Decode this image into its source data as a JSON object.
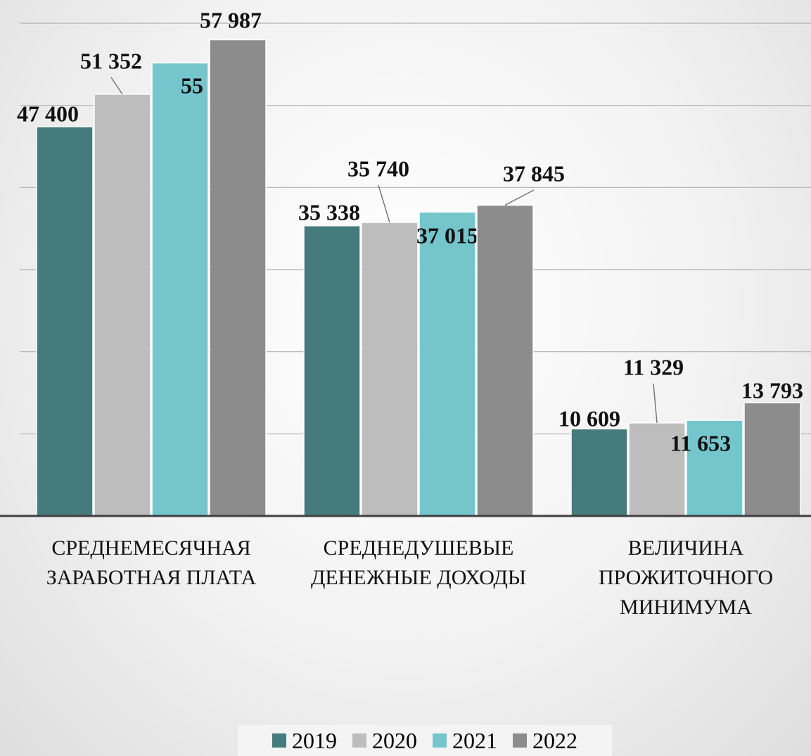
{
  "chart_data": {
    "type": "bar",
    "categories": [
      "СРЕДНЕМЕСЯЧНАЯ ЗАРАБОТНАЯ ПЛАТА",
      "СРЕДНЕДУШЕВЫЕ ДЕНЕЖНЫЕ ДОХОДЫ",
      "ВЕЛИЧИНА ПРОЖИТОЧНОГО МИНИМУМА"
    ],
    "series": [
      {
        "name": "2019",
        "color": "#467b7d",
        "values": [
          47400,
          35338,
          10609
        ],
        "value_labels": [
          "47 400",
          "35 338",
          "10 609"
        ]
      },
      {
        "name": "2020",
        "color": "#bdbdbd",
        "values": [
          51352,
          35740,
          11329
        ],
        "value_labels": [
          "51 352",
          "35 740",
          "11 329"
        ]
      },
      {
        "name": "2021",
        "color": "#74c6cc",
        "values": [
          55170,
          37015,
          11653
        ],
        "value_labels": [
          "55 170",
          "37 015",
          "11 653"
        ]
      },
      {
        "name": "2022",
        "color": "#8c8c8c",
        "values": [
          57987,
          37845,
          13793
        ],
        "value_labels": [
          "57 987",
          "37 845",
          "13 793"
        ]
      }
    ],
    "ylim": [
      0,
      60000
    ],
    "yticks": [
      0,
      10000,
      20000,
      30000,
      40000,
      50000,
      60000
    ],
    "grid": true,
    "legend": "bottom"
  }
}
